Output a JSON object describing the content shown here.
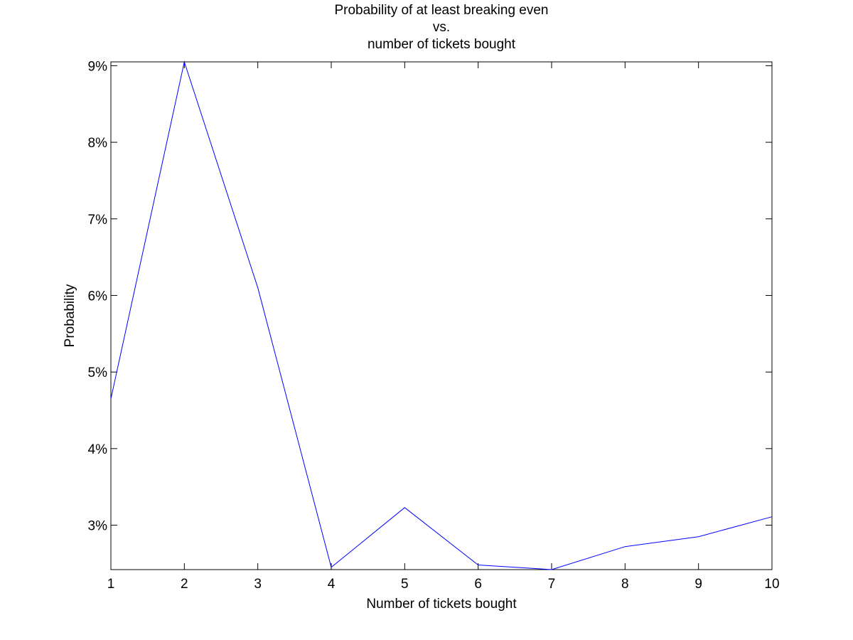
{
  "chart_data": {
    "type": "line",
    "title": [
      "Probability of at least breaking even",
      "vs.",
      "number of tickets bought"
    ],
    "xlabel": "Number of tickets bought",
    "ylabel": "Probability",
    "x": [
      1,
      2,
      3,
      4,
      5,
      6,
      7,
      8,
      9,
      10
    ],
    "series": [
      {
        "values": [
          4.65,
          9.05,
          6.1,
          2.45,
          3.23,
          2.48,
          2.42,
          2.72,
          2.85,
          3.11
        ],
        "color": "#0000ff"
      }
    ],
    "xlim": [
      1,
      10
    ],
    "ylim": [
      2.42,
      9.05
    ],
    "xticks": [
      1,
      2,
      3,
      4,
      5,
      6,
      7,
      8,
      9,
      10
    ],
    "xtick_labels": [
      "1",
      "2",
      "3",
      "4",
      "5",
      "6",
      "7",
      "8",
      "9",
      "10"
    ],
    "yticks": [
      3,
      4,
      5,
      6,
      7,
      8,
      9
    ],
    "ytick_labels": [
      "3%",
      "4%",
      "5%",
      "6%",
      "7%",
      "8%",
      "9%"
    ],
    "grid": false,
    "legend": false
  }
}
